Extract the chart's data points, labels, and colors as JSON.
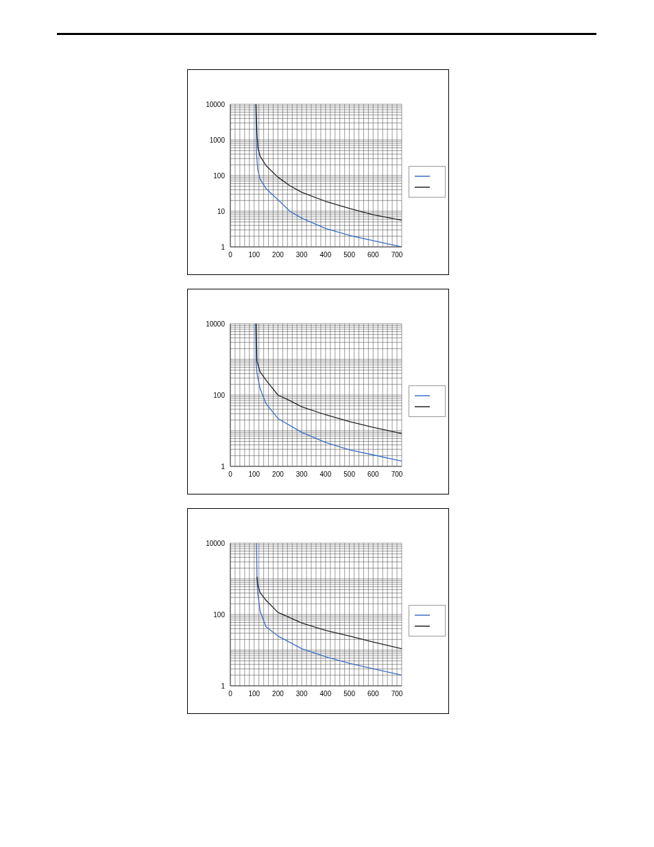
{
  "chart_data": [
    {
      "type": "line",
      "grid": true,
      "log": "y",
      "marker": "none",
      "line_style": "solid",
      "xlim": [
        0,
        720
      ],
      "ylim": [
        1,
        10000
      ],
      "xticks": [
        0,
        {
          "value": 20,
          "label": null
        },
        {
          "value": 40,
          "label": null
        },
        {
          "value": 60,
          "label": null
        },
        {
          "value": 80,
          "label": null
        },
        100,
        {
          "value": 120,
          "label": null
        },
        {
          "value": 140,
          "label": null
        },
        {
          "value": 160,
          "label": null
        },
        {
          "value": 180,
          "label": null
        },
        200,
        {
          "value": 220,
          "label": null
        },
        {
          "value": 240,
          "label": null
        },
        {
          "value": 260,
          "label": null
        },
        {
          "value": 280,
          "label": null
        },
        300,
        {
          "value": 320,
          "label": null
        },
        {
          "value": 340,
          "label": null
        },
        {
          "value": 360,
          "label": null
        },
        {
          "value": 380,
          "label": null
        },
        400,
        {
          "value": 420,
          "label": null
        },
        {
          "value": 440,
          "label": null
        },
        {
          "value": 460,
          "label": null
        },
        {
          "value": 480,
          "label": null
        },
        500,
        {
          "value": 520,
          "label": null
        },
        {
          "value": 540,
          "label": null
        },
        {
          "value": 560,
          "label": null
        },
        {
          "value": 580,
          "label": null
        },
        600,
        {
          "value": 620,
          "label": null
        },
        {
          "value": 640,
          "label": null
        },
        {
          "value": 660,
          "label": null
        },
        {
          "value": 680,
          "label": null
        },
        700
      ],
      "yticks": [
        1,
        {
          "value": 2,
          "label": null
        },
        {
          "value": 3,
          "label": null
        },
        {
          "value": 4,
          "label": null
        },
        {
          "value": 5,
          "label": null
        },
        {
          "value": 6,
          "label": null
        },
        {
          "value": 7,
          "label": null
        },
        {
          "value": 8,
          "label": null
        },
        {
          "value": 9,
          "label": null
        },
        10,
        {
          "value": 20,
          "label": null
        },
        {
          "value": 30,
          "label": null
        },
        {
          "value": 40,
          "label": null
        },
        {
          "value": 50,
          "label": null
        },
        {
          "value": 60,
          "label": null
        },
        {
          "value": 70,
          "label": null
        },
        {
          "value": 80,
          "label": null
        },
        {
          "value": 90,
          "label": null
        },
        100,
        {
          "value": 200,
          "label": null
        },
        {
          "value": 300,
          "label": null
        },
        {
          "value": 400,
          "label": null
        },
        {
          "value": 500,
          "label": null
        },
        {
          "value": 600,
          "label": null
        },
        {
          "value": 700,
          "label": null
        },
        {
          "value": 800,
          "label": null
        },
        {
          "value": 900,
          "label": null
        },
        1000,
        {
          "value": 2000,
          "label": null
        },
        {
          "value": 3000,
          "label": null
        },
        {
          "value": 4000,
          "label": null
        },
        {
          "value": 5000,
          "label": null
        },
        {
          "value": 6000,
          "label": null
        },
        {
          "value": 7000,
          "label": null
        },
        {
          "value": 8000,
          "label": null
        },
        {
          "value": 9000,
          "label": null
        },
        10000
      ],
      "series": [
        {
          "color": "#3a6fc4",
          "x": [
            107,
            110,
            115,
            125,
            150,
            200,
            250,
            300,
            400,
            500,
            600,
            720
          ],
          "values": [
            10000,
            400,
            150,
            80,
            43,
            21,
            10,
            6.4,
            3.3,
            2.1,
            1.5,
            1.0
          ]
        },
        {
          "color": "#222222",
          "x": [
            108,
            112,
            116,
            125,
            150,
            200,
            250,
            300,
            400,
            500,
            600,
            720
          ],
          "values": [
            10000,
            1500,
            600,
            350,
            190,
            90,
            52,
            34,
            19,
            12,
            8,
            5.6
          ]
        }
      ]
    },
    {
      "type": "line",
      "grid": true,
      "log": "y",
      "marker": "none",
      "line_style": "solid",
      "xlim": [
        0,
        720
      ],
      "ylim": [
        1,
        10000
      ],
      "xticks": [
        0,
        {
          "value": 20,
          "label": null
        },
        {
          "value": 40,
          "label": null
        },
        {
          "value": 60,
          "label": null
        },
        {
          "value": 80,
          "label": null
        },
        100,
        {
          "value": 120,
          "label": null
        },
        {
          "value": 140,
          "label": null
        },
        {
          "value": 160,
          "label": null
        },
        {
          "value": 180,
          "label": null
        },
        200,
        {
          "value": 220,
          "label": null
        },
        {
          "value": 240,
          "label": null
        },
        {
          "value": 260,
          "label": null
        },
        {
          "value": 280,
          "label": null
        },
        300,
        {
          "value": 320,
          "label": null
        },
        {
          "value": 340,
          "label": null
        },
        {
          "value": 360,
          "label": null
        },
        {
          "value": 380,
          "label": null
        },
        400,
        {
          "value": 420,
          "label": null
        },
        {
          "value": 440,
          "label": null
        },
        {
          "value": 460,
          "label": null
        },
        {
          "value": 480,
          "label": null
        },
        500,
        {
          "value": 520,
          "label": null
        },
        {
          "value": 540,
          "label": null
        },
        {
          "value": 560,
          "label": null
        },
        {
          "value": 580,
          "label": null
        },
        600,
        {
          "value": 620,
          "label": null
        },
        {
          "value": 640,
          "label": null
        },
        {
          "value": 660,
          "label": null
        },
        {
          "value": 680,
          "label": null
        },
        700
      ],
      "yticks": [
        1,
        {
          "value": 2,
          "label": null
        },
        {
          "value": 3,
          "label": null
        },
        {
          "value": 4,
          "label": null
        },
        {
          "value": 5,
          "label": null
        },
        {
          "value": 6,
          "label": null
        },
        {
          "value": 7,
          "label": null
        },
        {
          "value": 8,
          "label": null
        },
        {
          "value": 9,
          "label": null
        },
        {
          "value": 10,
          "label": null
        },
        {
          "value": 20,
          "label": null
        },
        {
          "value": 30,
          "label": null
        },
        {
          "value": 40,
          "label": null
        },
        {
          "value": 50,
          "label": null
        },
        {
          "value": 60,
          "label": null
        },
        {
          "value": 70,
          "label": null
        },
        {
          "value": 80,
          "label": null
        },
        {
          "value": 90,
          "label": null
        },
        100,
        {
          "value": 200,
          "label": null
        },
        {
          "value": 300,
          "label": null
        },
        {
          "value": 400,
          "label": null
        },
        {
          "value": 500,
          "label": null
        },
        {
          "value": 600,
          "label": null
        },
        {
          "value": 700,
          "label": null
        },
        {
          "value": 800,
          "label": null
        },
        {
          "value": 900,
          "label": null
        },
        {
          "value": 1000,
          "label": null
        },
        {
          "value": 2000,
          "label": null
        },
        {
          "value": 3000,
          "label": null
        },
        {
          "value": 4000,
          "label": null
        },
        {
          "value": 5000,
          "label": null
        },
        {
          "value": 6000,
          "label": null
        },
        {
          "value": 7000,
          "label": null
        },
        {
          "value": 8000,
          "label": null
        },
        {
          "value": 9000,
          "label": null
        },
        10000
      ],
      "series": [
        {
          "color": "#3a6fc4",
          "x": [
            106,
            108,
            112,
            125,
            150,
            200,
            250,
            300,
            400,
            500,
            600,
            720
          ],
          "values": [
            10000,
            1000,
            400,
            150,
            57,
            22,
            14,
            9,
            4.7,
            2.9,
            2.1,
            1.4
          ]
        },
        {
          "color": "#222222",
          "x": [
            109,
            112,
            125,
            150,
            200,
            250,
            300,
            400,
            500,
            600,
            720
          ],
          "values": [
            10000,
            900,
            450,
            260,
            100,
            70,
            47,
            28,
            18,
            12.4,
            8.3
          ]
        }
      ]
    },
    {
      "type": "line",
      "grid": true,
      "log": "y",
      "marker": "none",
      "line_style": "solid",
      "xlim": [
        0,
        720
      ],
      "ylim": [
        1,
        10000
      ],
      "xticks": [
        0,
        {
          "value": 20,
          "label": null
        },
        {
          "value": 40,
          "label": null
        },
        {
          "value": 60,
          "label": null
        },
        {
          "value": 80,
          "label": null
        },
        100,
        {
          "value": 120,
          "label": null
        },
        {
          "value": 140,
          "label": null
        },
        {
          "value": 160,
          "label": null
        },
        {
          "value": 180,
          "label": null
        },
        200,
        {
          "value": 220,
          "label": null
        },
        {
          "value": 240,
          "label": null
        },
        {
          "value": 260,
          "label": null
        },
        {
          "value": 280,
          "label": null
        },
        300,
        {
          "value": 320,
          "label": null
        },
        {
          "value": 340,
          "label": null
        },
        {
          "value": 360,
          "label": null
        },
        {
          "value": 380,
          "label": null
        },
        400,
        {
          "value": 420,
          "label": null
        },
        {
          "value": 440,
          "label": null
        },
        {
          "value": 460,
          "label": null
        },
        {
          "value": 480,
          "label": null
        },
        500,
        {
          "value": 520,
          "label": null
        },
        {
          "value": 540,
          "label": null
        },
        {
          "value": 560,
          "label": null
        },
        {
          "value": 580,
          "label": null
        },
        600,
        {
          "value": 620,
          "label": null
        },
        {
          "value": 640,
          "label": null
        },
        {
          "value": 660,
          "label": null
        },
        {
          "value": 680,
          "label": null
        },
        700
      ],
      "yticks": [
        1,
        {
          "value": 2,
          "label": null
        },
        {
          "value": 3,
          "label": null
        },
        {
          "value": 4,
          "label": null
        },
        {
          "value": 5,
          "label": null
        },
        {
          "value": 6,
          "label": null
        },
        {
          "value": 7,
          "label": null
        },
        {
          "value": 8,
          "label": null
        },
        {
          "value": 9,
          "label": null
        },
        {
          "value": 10,
          "label": null
        },
        {
          "value": 20,
          "label": null
        },
        {
          "value": 30,
          "label": null
        },
        {
          "value": 40,
          "label": null
        },
        {
          "value": 50,
          "label": null
        },
        {
          "value": 60,
          "label": null
        },
        {
          "value": 70,
          "label": null
        },
        {
          "value": 80,
          "label": null
        },
        {
          "value": 90,
          "label": null
        },
        100,
        {
          "value": 200,
          "label": null
        },
        {
          "value": 300,
          "label": null
        },
        {
          "value": 400,
          "label": null
        },
        {
          "value": 500,
          "label": null
        },
        {
          "value": 600,
          "label": null
        },
        {
          "value": 700,
          "label": null
        },
        {
          "value": 800,
          "label": null
        },
        {
          "value": 900,
          "label": null
        },
        {
          "value": 1000,
          "label": null
        },
        {
          "value": 2000,
          "label": null
        },
        {
          "value": 3000,
          "label": null
        },
        {
          "value": 4000,
          "label": null
        },
        {
          "value": 5000,
          "label": null
        },
        {
          "value": 6000,
          "label": null
        },
        {
          "value": 7000,
          "label": null
        },
        {
          "value": 8000,
          "label": null
        },
        {
          "value": 9000,
          "label": null
        },
        10000
      ],
      "series": [
        {
          "color": "#3a6fc4",
          "x": [
            110,
            112,
            115,
            125,
            150,
            200,
            300,
            400,
            500,
            600,
            720
          ],
          "values": [
            10000,
            1000,
            400,
            125,
            45,
            25,
            11,
            6.5,
            4.3,
            3.0,
            2.0
          ]
        },
        {
          "color": "#222222",
          "x": [
            112,
            115,
            125,
            150,
            200,
            300,
            400,
            500,
            600,
            720
          ],
          "values": [
            1150,
            700,
            410,
            250,
            115,
            58,
            36,
            25,
            17,
            11
          ]
        }
      ]
    }
  ]
}
